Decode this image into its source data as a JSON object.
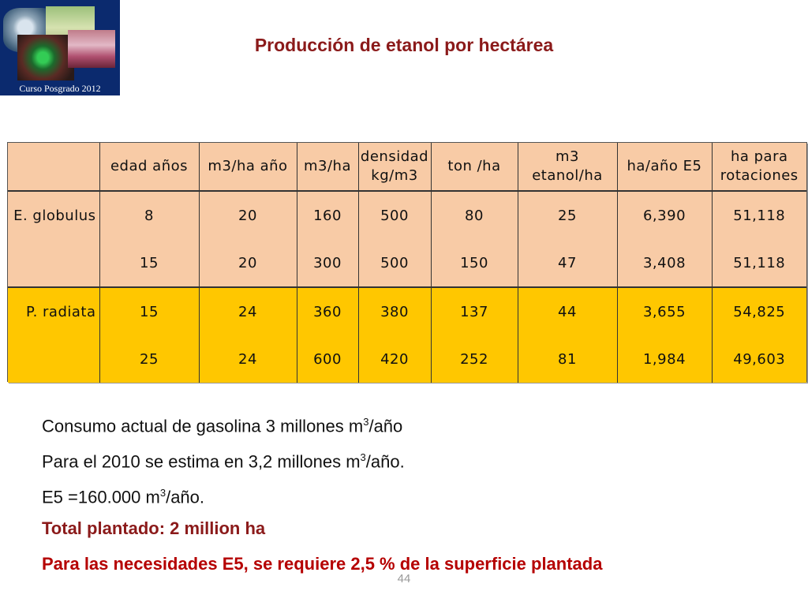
{
  "logo": {
    "caption": "Curso Posgrado 2012"
  },
  "title": "Producción de etanol por hectárea",
  "table": {
    "headers": [
      "",
      "edad años",
      "m3/ha año",
      "m3/ha",
      "densidad kg/m3",
      "ton /ha",
      "m3 etanol/ha",
      "ha/año E5",
      "ha para rotaciones"
    ],
    "rows": [
      {
        "species": "E. globulus",
        "cells": [
          "8",
          "20",
          "160",
          "500",
          "80",
          "25",
          "6,390",
          "51,118"
        ]
      },
      {
        "species": "",
        "cells": [
          "15",
          "20",
          "300",
          "500",
          "150",
          "47",
          "3,408",
          "51,118"
        ]
      },
      {
        "species": "P. radiata",
        "cells": [
          "15",
          "24",
          "360",
          "380",
          "137",
          "44",
          "3,655",
          "54,825"
        ]
      },
      {
        "species": "",
        "cells": [
          "25",
          "24",
          "600",
          "420",
          "252",
          "81",
          "1,984",
          "49,603"
        ]
      }
    ],
    "colors": {
      "peach": "#f8cba6",
      "yellow": "#ffc700"
    }
  },
  "notes": {
    "line1_pre": "Consumo actual de gasolina 3 millones m",
    "line1_sup": "3",
    "line1_post": "/año",
    "line2_pre": "Para el 2010 se estima en 3,2 millones m",
    "line2_sup": "3",
    "line2_post": "/año.",
    "line3_pre": "E5 =160.000 m",
    "line3_sup": "3",
    "line3_post": "/año.",
    "line4": "Total plantado: 2 million ha",
    "line5": "Para las necesidades  E5,  se requiere 2,5 % de la superficie plantada"
  },
  "page_number": "44"
}
